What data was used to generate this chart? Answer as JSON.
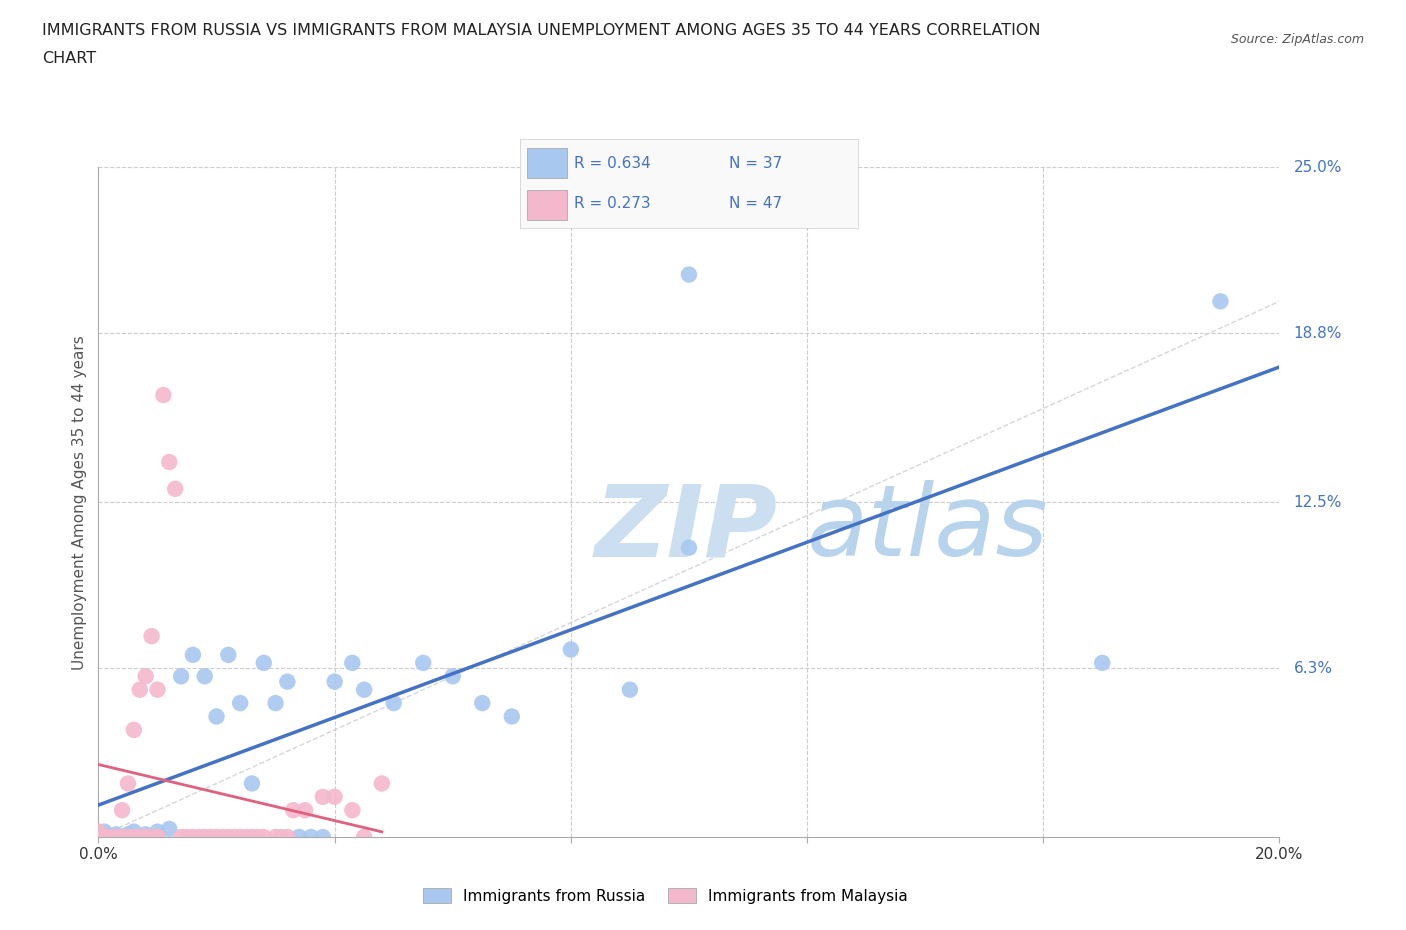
{
  "title_line1": "IMMIGRANTS FROM RUSSIA VS IMMIGRANTS FROM MALAYSIA UNEMPLOYMENT AMONG AGES 35 TO 44 YEARS CORRELATION",
  "title_line2": "CHART",
  "source": "Source: ZipAtlas.com",
  "ylabel": "Unemployment Among Ages 35 to 44 years",
  "xlim": [
    0.0,
    0.2
  ],
  "ylim": [
    0.0,
    0.25
  ],
  "russia_color": "#a8c8f0",
  "malaysia_color": "#f4b8cc",
  "russia_R": 0.634,
  "russia_N": 37,
  "malaysia_R": 0.273,
  "malaysia_N": 47,
  "legend_R_color": "#4472c4",
  "regression_russia_color": "#4472c4",
  "regression_malaysia_color": "#e06080",
  "background_color": "#ffffff",
  "watermark_zip": "ZIP",
  "watermark_atlas": "atlas",
  "watermark_color": "#d8eaf8",
  "grid_color": "#cccccc",
  "diagonal_color": "#cccccc",
  "russia_points": [
    [
      0.001,
      0.002
    ],
    [
      0.002,
      0.0
    ],
    [
      0.003,
      0.001
    ],
    [
      0.004,
      0.0
    ],
    [
      0.005,
      0.001
    ],
    [
      0.006,
      0.002
    ],
    [
      0.007,
      0.0
    ],
    [
      0.008,
      0.001
    ],
    [
      0.01,
      0.002
    ],
    [
      0.012,
      0.003
    ],
    [
      0.014,
      0.06
    ],
    [
      0.016,
      0.068
    ],
    [
      0.018,
      0.06
    ],
    [
      0.02,
      0.045
    ],
    [
      0.022,
      0.068
    ],
    [
      0.024,
      0.05
    ],
    [
      0.026,
      0.02
    ],
    [
      0.028,
      0.065
    ],
    [
      0.03,
      0.05
    ],
    [
      0.032,
      0.058
    ],
    [
      0.034,
      0.0
    ],
    [
      0.036,
      0.0
    ],
    [
      0.038,
      0.0
    ],
    [
      0.04,
      0.058
    ],
    [
      0.043,
      0.065
    ],
    [
      0.045,
      0.055
    ],
    [
      0.05,
      0.05
    ],
    [
      0.055,
      0.065
    ],
    [
      0.06,
      0.06
    ],
    [
      0.065,
      0.05
    ],
    [
      0.07,
      0.045
    ],
    [
      0.08,
      0.07
    ],
    [
      0.09,
      0.055
    ],
    [
      0.1,
      0.108
    ],
    [
      0.1,
      0.21
    ],
    [
      0.17,
      0.065
    ],
    [
      0.19,
      0.2
    ]
  ],
  "malaysia_points": [
    [
      0.0,
      0.002
    ],
    [
      0.001,
      0.0
    ],
    [
      0.002,
      0.0
    ],
    [
      0.003,
      0.0
    ],
    [
      0.004,
      0.0
    ],
    [
      0.004,
      0.01
    ],
    [
      0.005,
      0.0
    ],
    [
      0.005,
      0.02
    ],
    [
      0.006,
      0.0
    ],
    [
      0.006,
      0.04
    ],
    [
      0.007,
      0.0
    ],
    [
      0.007,
      0.055
    ],
    [
      0.008,
      0.0
    ],
    [
      0.008,
      0.06
    ],
    [
      0.009,
      0.0
    ],
    [
      0.009,
      0.075
    ],
    [
      0.01,
      0.0
    ],
    [
      0.01,
      0.0
    ],
    [
      0.01,
      0.055
    ],
    [
      0.011,
      0.165
    ],
    [
      0.012,
      0.14
    ],
    [
      0.013,
      0.13
    ],
    [
      0.014,
      0.0
    ],
    [
      0.015,
      0.0
    ],
    [
      0.016,
      0.0
    ],
    [
      0.017,
      0.0
    ],
    [
      0.018,
      0.0
    ],
    [
      0.019,
      0.0
    ],
    [
      0.02,
      0.0
    ],
    [
      0.021,
      0.0
    ],
    [
      0.022,
      0.0
    ],
    [
      0.023,
      0.0
    ],
    [
      0.024,
      0.0
    ],
    [
      0.025,
      0.0
    ],
    [
      0.026,
      0.0
    ],
    [
      0.027,
      0.0
    ],
    [
      0.028,
      0.0
    ],
    [
      0.03,
      0.0
    ],
    [
      0.031,
      0.0
    ],
    [
      0.032,
      0.0
    ],
    [
      0.033,
      0.01
    ],
    [
      0.035,
      0.01
    ],
    [
      0.038,
      0.015
    ],
    [
      0.04,
      0.015
    ],
    [
      0.043,
      0.01
    ],
    [
      0.045,
      0.0
    ],
    [
      0.048,
      0.02
    ]
  ]
}
